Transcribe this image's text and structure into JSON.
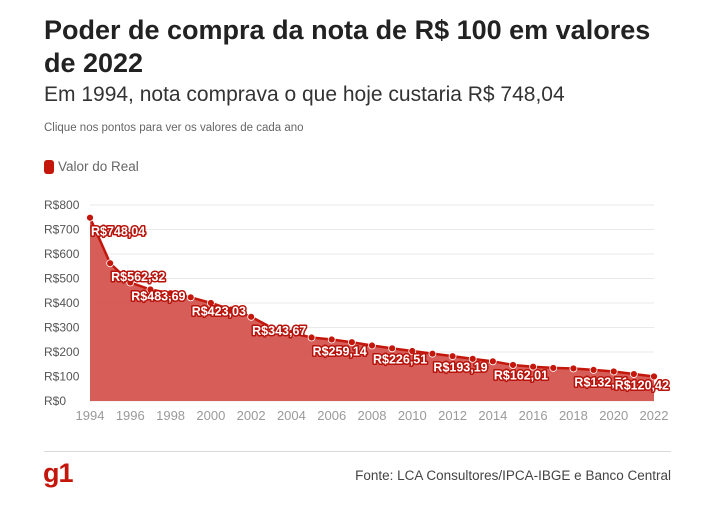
{
  "header": {
    "title": "Poder de compra da nota de R$ 100 em valores de 2022",
    "subtitle": "Em 1994, nota comprava o que hoje custaria R$ 748,04",
    "hint": "Clique nos pontos para ver os valores de cada ano"
  },
  "footer": {
    "logo": "g1",
    "source": "Fonte: LCA Consultores/IPCA-IBGE e Banco Central"
  },
  "colors": {
    "series": "#c4170c",
    "area": "#d44f4a",
    "grid": "#e9e9e9",
    "axis_text": "#9a9a9a",
    "logo": "#c4170c"
  },
  "chart_data": {
    "type": "area",
    "xlim": [
      1994,
      2022
    ],
    "ylim": [
      0,
      800
    ],
    "y_ticks": [
      {
        "value": 0,
        "label": "R$0"
      },
      {
        "value": 100,
        "label": "R$100"
      },
      {
        "value": 200,
        "label": "R$200"
      },
      {
        "value": 300,
        "label": "R$300"
      },
      {
        "value": 400,
        "label": "R$400"
      },
      {
        "value": 500,
        "label": "R$500"
      },
      {
        "value": 600,
        "label": "R$600"
      },
      {
        "value": 700,
        "label": "R$700"
      },
      {
        "value": 800,
        "label": "R$800"
      }
    ],
    "x_ticks": [
      1994,
      1996,
      1998,
      2000,
      2002,
      2004,
      2006,
      2008,
      2010,
      2012,
      2014,
      2016,
      2018,
      2020,
      2022
    ],
    "grid": true,
    "legend": "top-left",
    "series": [
      {
        "name": "Valor do Real",
        "x": [
          1994,
          1995,
          1996,
          1997,
          1998,
          1999,
          2000,
          2001,
          2002,
          2003,
          2004,
          2005,
          2006,
          2007,
          2008,
          2009,
          2010,
          2011,
          2012,
          2013,
          2014,
          2015,
          2016,
          2017,
          2018,
          2019,
          2020,
          2021,
          2022
        ],
        "values": [
          748.04,
          562.32,
          483.69,
          455,
          440,
          423.03,
          400,
          373,
          343.67,
          300,
          278,
          259.14,
          251,
          240,
          226.51,
          215,
          204,
          193.19,
          183,
          172,
          162.01,
          147,
          140,
          135,
          132.71,
          127,
          120.42,
          110,
          100
        ]
      }
    ],
    "data_labels": [
      {
        "x": 1994,
        "value": 748.04,
        "label": "R$748,04"
      },
      {
        "x": 1995,
        "value": 562.32,
        "label": "R$562,32"
      },
      {
        "x": 1996,
        "value": 483.69,
        "label": "R$483,69"
      },
      {
        "x": 1999,
        "value": 423.03,
        "label": "R$423,03"
      },
      {
        "x": 2002,
        "value": 343.67,
        "label": "R$343,67"
      },
      {
        "x": 2005,
        "value": 259.14,
        "label": "R$259,14"
      },
      {
        "x": 2008,
        "value": 226.51,
        "label": "R$226,51"
      },
      {
        "x": 2011,
        "value": 193.19,
        "label": "R$193,19"
      },
      {
        "x": 2014,
        "value": 162.01,
        "label": "R$162,01"
      },
      {
        "x": 2018,
        "value": 132.71,
        "label": "R$132,71"
      },
      {
        "x": 2020,
        "value": 120.42,
        "label": "R$120,42"
      }
    ]
  }
}
